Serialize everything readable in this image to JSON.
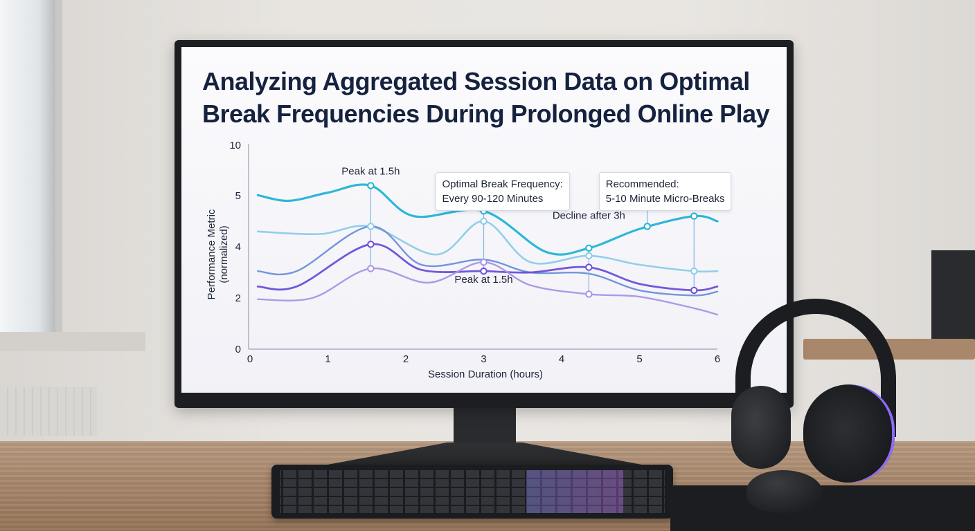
{
  "chart_data": {
    "type": "line",
    "title": "Analyzing Aggregated Session Data on Optimal Break Frequencies During Prolonged Online Play",
    "xlabel": "Session Duration (hours)",
    "ylabel_line1": "Performance Metric",
    "ylabel_line2": "(normalized)",
    "x_ticks": [
      "0",
      "1",
      "2",
      "3",
      "4",
      "5",
      "6"
    ],
    "y_ticks": [
      "0",
      "2",
      "4",
      "5",
      "10"
    ],
    "xlim": [
      0,
      6
    ],
    "grid": false,
    "legend": "none",
    "series": [
      {
        "color": "#22b3d6",
        "x": [
          0.1,
          0.5,
          1.0,
          1.55,
          2.1,
          3.0,
          3.8,
          4.35,
          5.0,
          5.7,
          6.0
        ],
        "y": [
          5.05,
          4.9,
          5.3,
          6.0,
          4.6,
          4.7,
          3.8,
          3.95,
          4.35,
          4.6,
          4.5
        ]
      },
      {
        "color": "#8ccbe9",
        "x": [
          0.1,
          0.9,
          1.55,
          2.4,
          3.0,
          3.6,
          4.35,
          5.0,
          5.7,
          6.0
        ],
        "y": [
          4.3,
          4.25,
          4.4,
          3.7,
          4.5,
          3.4,
          3.65,
          3.3,
          3.05,
          3.05
        ]
      },
      {
        "color": "#6b8fd8",
        "x": [
          0.1,
          0.6,
          1.55,
          2.2,
          3.0,
          3.6,
          4.35,
          5.0,
          5.7,
          6.0
        ],
        "y": [
          3.05,
          3.05,
          4.4,
          3.3,
          3.5,
          3.0,
          2.95,
          2.3,
          2.1,
          2.25
        ]
      },
      {
        "color": "#6a4fd8",
        "x": [
          0.1,
          0.6,
          1.55,
          2.2,
          3.0,
          3.6,
          4.35,
          5.0,
          5.7,
          6.0
        ],
        "y": [
          2.45,
          2.45,
          4.05,
          3.1,
          3.05,
          3.0,
          3.2,
          2.55,
          2.3,
          2.45
        ]
      },
      {
        "color": "#a795e6",
        "x": [
          0.1,
          0.8,
          1.55,
          2.3,
          3.0,
          3.6,
          4.35,
          5.0,
          5.7,
          6.0
        ],
        "y": [
          1.95,
          2.0,
          3.15,
          2.6,
          3.4,
          2.5,
          2.15,
          2.05,
          1.6,
          1.35
        ]
      }
    ],
    "markers": [
      {
        "series": 0,
        "x": 1.55,
        "y": 6.0
      },
      {
        "series": 0,
        "x": 3.0,
        "y": 4.7
      },
      {
        "series": 0,
        "x": 4.35,
        "y": 3.95
      },
      {
        "series": 0,
        "x": 5.1,
        "y": 4.4
      },
      {
        "series": 0,
        "x": 5.7,
        "y": 4.6
      },
      {
        "series": 1,
        "x": 1.55,
        "y": 4.4
      },
      {
        "series": 1,
        "x": 3.0,
        "y": 4.5
      },
      {
        "series": 1,
        "x": 4.35,
        "y": 3.65
      },
      {
        "series": 1,
        "x": 5.7,
        "y": 3.05
      },
      {
        "series": 3,
        "x": 1.55,
        "y": 4.05
      },
      {
        "series": 3,
        "x": 3.0,
        "y": 3.05
      },
      {
        "series": 3,
        "x": 4.35,
        "y": 3.2
      },
      {
        "series": 3,
        "x": 5.7,
        "y": 2.3
      },
      {
        "series": 4,
        "x": 1.55,
        "y": 3.15
      },
      {
        "series": 4,
        "x": 3.0,
        "y": 3.4
      },
      {
        "series": 4,
        "x": 4.35,
        "y": 2.15
      }
    ],
    "annotations": [
      {
        "text": "Peak at 1.5h",
        "x": 1.55,
        "y": 6.0,
        "label_y": 7.1
      },
      {
        "text": "Peak at 1.5h",
        "x": 3.0,
        "y": 4.7,
        "label_y": 5.35
      },
      {
        "text": "Peak at 1.5h",
        "x": 3.0,
        "y": 3.05,
        "label_y": 2.6
      },
      {
        "text": "Decline after 3h",
        "x": 4.35,
        "y": 3.95,
        "label_y": 4.55
      },
      {
        "text": "Decline after 3h",
        "x": 5.7,
        "y": 4.6,
        "label_y": 5.2
      }
    ],
    "callouts": [
      {
        "line1": "Optimal Break Frequency:",
        "line2": "Every 90-120 Minutes",
        "x": 3.0,
        "y": 6.9
      },
      {
        "line1": "Recommended:",
        "line2": "5-10 Minute Micro-Breaks",
        "x": 5.1,
        "y": 6.9
      }
    ]
  }
}
